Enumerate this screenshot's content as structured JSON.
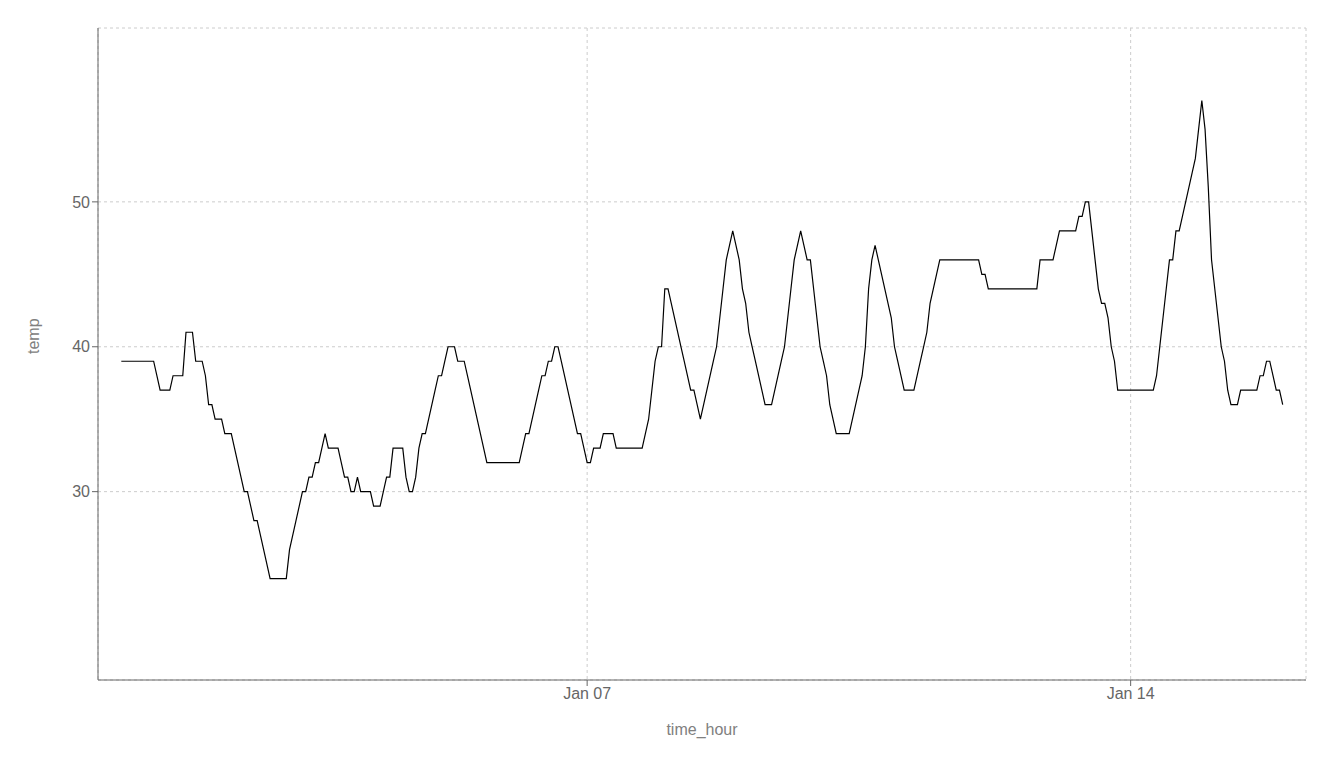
{
  "chart_data": {
    "type": "line",
    "xlabel": "time_hour",
    "ylabel": "temp",
    "x": [
      0,
      1,
      2,
      3,
      4,
      5,
      6,
      7,
      8,
      9,
      10,
      11,
      12,
      13,
      14,
      15,
      16,
      17,
      18,
      19,
      20,
      21,
      22,
      23,
      24,
      25,
      26,
      27,
      28,
      29,
      30,
      31,
      32,
      33,
      34,
      35,
      36,
      37,
      38,
      39,
      40,
      41,
      42,
      43,
      44,
      45,
      46,
      47,
      48,
      49,
      50,
      51,
      52,
      53,
      54,
      55,
      56,
      57,
      58,
      59,
      60,
      61,
      62,
      63,
      64,
      65,
      66,
      67,
      68,
      69,
      70,
      71,
      72,
      73,
      74,
      75,
      76,
      77,
      78,
      79,
      80,
      81,
      82,
      83,
      84,
      85,
      86,
      87,
      88,
      89,
      90,
      91,
      92,
      93,
      94,
      95,
      96,
      97,
      98,
      99,
      100,
      101,
      102,
      103,
      104,
      105,
      106,
      107,
      108,
      109,
      110,
      111,
      112,
      113,
      114,
      115,
      116,
      117,
      118,
      119,
      120,
      121,
      122,
      123,
      124,
      125,
      126,
      127,
      128,
      129,
      130,
      131,
      132,
      133,
      134,
      135,
      136,
      137,
      138,
      139,
      140,
      141,
      142,
      143,
      144,
      145,
      146,
      147,
      148,
      149,
      150,
      151,
      152,
      153,
      154,
      155,
      156,
      157,
      158,
      159,
      160,
      161,
      162,
      163,
      164,
      165,
      166,
      167,
      168,
      169,
      170,
      171,
      172,
      173,
      174,
      175,
      176,
      177,
      178,
      179,
      180,
      181,
      182,
      183,
      184,
      185,
      186,
      187,
      188,
      189,
      190,
      191,
      192,
      193,
      194,
      195,
      196,
      197,
      198,
      199,
      200,
      201,
      202,
      203,
      204,
      205,
      206,
      207,
      208,
      209,
      210,
      211,
      212,
      213,
      214,
      215,
      216,
      217,
      218,
      219,
      220,
      221,
      222,
      223,
      224,
      225,
      226,
      227,
      228,
      229,
      230,
      231,
      232,
      233,
      234,
      235,
      236,
      237,
      238,
      239,
      240,
      241,
      242,
      243,
      244,
      245,
      246,
      247,
      248,
      249,
      250,
      251,
      252,
      253,
      254,
      255,
      256,
      257,
      258,
      259,
      260,
      261,
      262,
      263,
      264,
      265,
      266,
      267,
      268,
      269,
      270,
      271,
      272,
      273,
      274,
      275,
      276,
      277,
      278,
      279,
      280,
      281,
      282,
      283,
      284,
      285,
      286,
      287,
      288,
      289,
      290,
      291,
      292,
      293,
      294,
      295,
      296,
      297,
      298,
      299,
      300,
      301,
      302,
      303,
      304,
      305,
      306,
      307,
      308,
      309,
      310,
      311,
      312,
      313,
      314,
      315,
      316,
      317,
      318,
      319,
      320,
      321,
      322,
      323,
      324,
      325,
      326,
      327,
      328,
      329,
      330,
      331,
      332,
      333,
      334,
      335,
      336,
      337,
      338,
      339,
      340,
      341,
      342,
      343,
      344,
      345,
      346,
      347,
      348,
      349,
      350,
      351,
      352,
      353,
      354,
      355,
      356,
      357,
      358,
      359
    ],
    "values": [
      39,
      39,
      39,
      39,
      39,
      39,
      39,
      39,
      39,
      39,
      39,
      38,
      37,
      37,
      37,
      37,
      38,
      38,
      38,
      38,
      41,
      41,
      41,
      39,
      39,
      39,
      38,
      36,
      36,
      35,
      35,
      35,
      34,
      34,
      34,
      33,
      32,
      31,
      30,
      30,
      29,
      28,
      28,
      27,
      26,
      25,
      24,
      24,
      24,
      24,
      24,
      24,
      26,
      27,
      28,
      29,
      30,
      30,
      31,
      31,
      32,
      32,
      33,
      34,
      33,
      33,
      33,
      33,
      32,
      31,
      31,
      30,
      30,
      31,
      30,
      30,
      30,
      30,
      29,
      29,
      29,
      30,
      31,
      31,
      33,
      33,
      33,
      33,
      31,
      30,
      30,
      31,
      33,
      34,
      34,
      35,
      36,
      37,
      38,
      38,
      39,
      40,
      40,
      40,
      39,
      39,
      39,
      38,
      37,
      36,
      35,
      34,
      33,
      32,
      32,
      32,
      32,
      32,
      32,
      32,
      32,
      32,
      32,
      32,
      33,
      34,
      34,
      35,
      36,
      37,
      38,
      38,
      39,
      39,
      40,
      40,
      39,
      38,
      37,
      36,
      35,
      34,
      34,
      33,
      32,
      32,
      33,
      33,
      33,
      34,
      34,
      34,
      34,
      33,
      33,
      33,
      33,
      33,
      33,
      33,
      33,
      33,
      34,
      35,
      37,
      39,
      40,
      40,
      44,
      44,
      43,
      42,
      41,
      40,
      39,
      38,
      37,
      37,
      36,
      35,
      36,
      37,
      38,
      39,
      40,
      42,
      44,
      46,
      47,
      48,
      47,
      46,
      44,
      43,
      41,
      40,
      39,
      38,
      37,
      36,
      36,
      36,
      37,
      38,
      39,
      40,
      42,
      44,
      46,
      47,
      48,
      47,
      46,
      46,
      44,
      42,
      40,
      39,
      38,
      36,
      35,
      34,
      34,
      34,
      34,
      34,
      35,
      36,
      37,
      38,
      40,
      44,
      46,
      47,
      46,
      45,
      44,
      43,
      42,
      40,
      39,
      38,
      37,
      37,
      37,
      37,
      38,
      39,
      40,
      41,
      43,
      44,
      45,
      46,
      46,
      46,
      46,
      46,
      46,
      46,
      46,
      46,
      46,
      46,
      46,
      46,
      45,
      45,
      44,
      44,
      44,
      44,
      44,
      44,
      44,
      44,
      44,
      44,
      44,
      44,
      44,
      44,
      44,
      44,
      46,
      46,
      46,
      46,
      46,
      47,
      48,
      48,
      48,
      48,
      48,
      48,
      49,
      49,
      50,
      50,
      48,
      46,
      44,
      43,
      43,
      42,
      40,
      39,
      37,
      37,
      37,
      37,
      37,
      37,
      37,
      37,
      37,
      37,
      37,
      37,
      38,
      40,
      42,
      44,
      46,
      46,
      48,
      48,
      49,
      50,
      51,
      52,
      53,
      55,
      57,
      55,
      51,
      46,
      44,
      42,
      40,
      39,
      37,
      36,
      36,
      36,
      37,
      37,
      37,
      37,
      37,
      37,
      38,
      38,
      39,
      39,
      38,
      37,
      37,
      36
    ],
    "color": "#000000",
    "xlim": [
      -7.2,
      366.2
    ],
    "xticks": [
      {
        "value": 144,
        "label": "Jan 07"
      },
      {
        "value": 312,
        "label": "Jan 14"
      }
    ],
    "ylim": [
      17,
      62
    ],
    "yticks": [
      30,
      40,
      50
    ],
    "grid": true
  }
}
